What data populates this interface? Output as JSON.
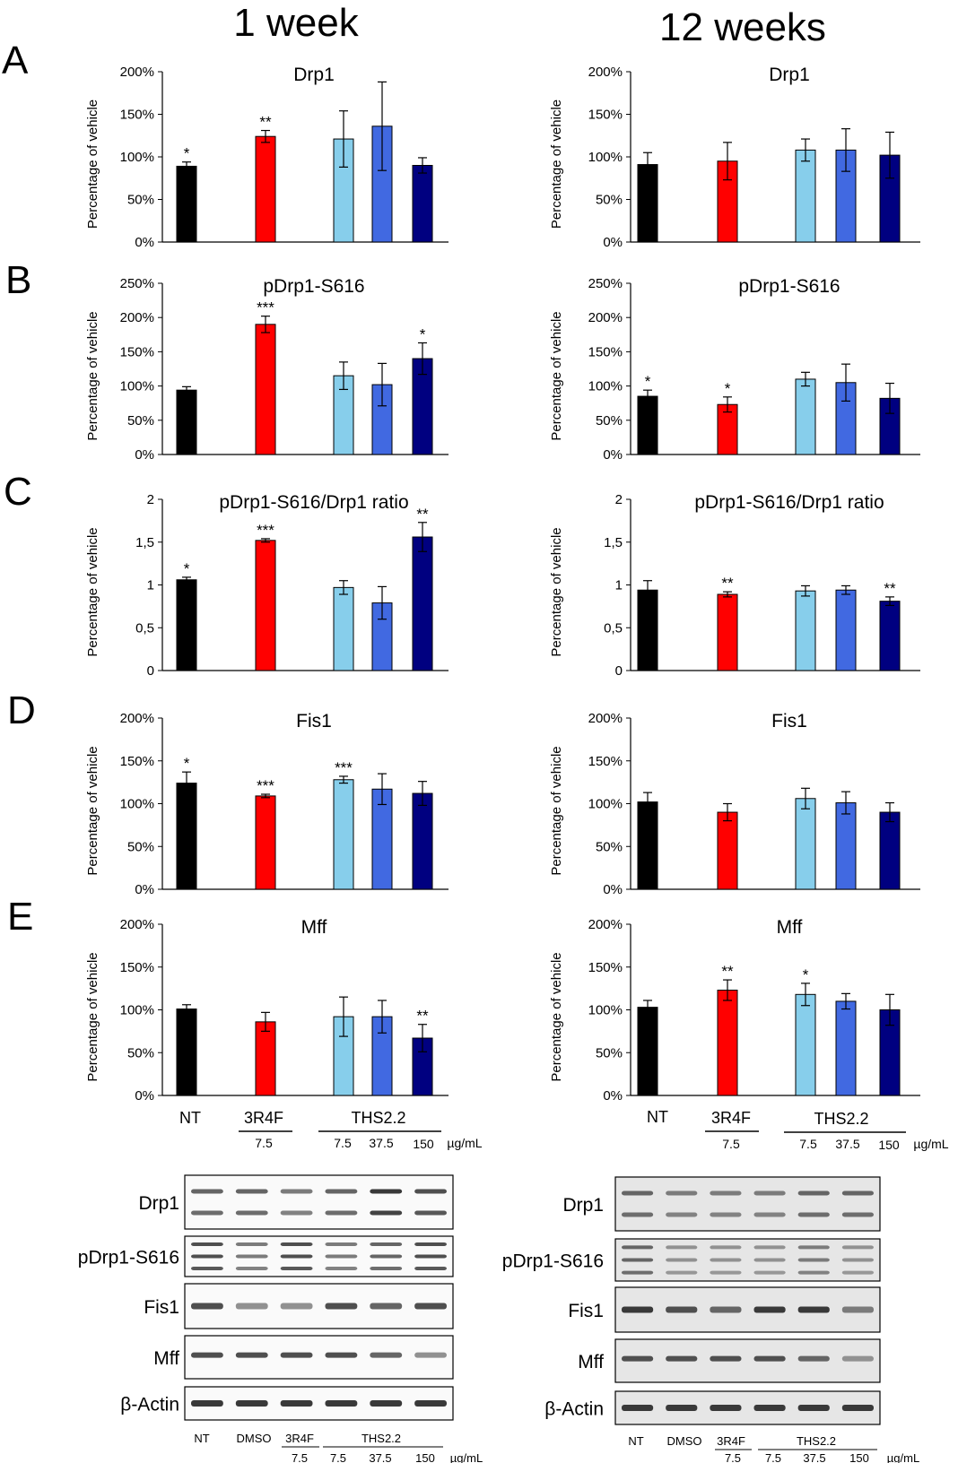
{
  "column_titles": [
    "1 week",
    "12 weeks"
  ],
  "panel_letters": [
    "A",
    "B",
    "C",
    "D",
    "E"
  ],
  "y_axis_label": "Percentage of vehicle",
  "colors": {
    "NT": "#000000",
    "3R4F": "#ff0000",
    "THS2.2_7.5": "#87ceeb",
    "THS2.2_37.5": "#4169e1",
    "THS2.2_150": "#000080"
  },
  "x_axis": {
    "nt": "NT",
    "ref": "3R4F",
    "ref_dose": "7.5",
    "ths": "THS2.2",
    "ths_doses": [
      "7.5",
      "37.5",
      "150"
    ],
    "unit": "µg/mL"
  },
  "chart_data": [
    {
      "type": "bar",
      "panel": "A",
      "timepoint": "1 week",
      "title": "Drp1",
      "yticks": [
        "0%",
        "50%",
        "100%",
        "150%",
        "200%"
      ],
      "ylim": [
        0,
        200
      ],
      "categories": [
        "NT",
        "3R4F 7.5",
        "THS2.2 7.5",
        "THS2.2 37.5",
        "THS2.2 150"
      ],
      "values": [
        89,
        124,
        121,
        136,
        90
      ],
      "errors": [
        5,
        7,
        33,
        52,
        9
      ],
      "significance": [
        "*",
        "**",
        "",
        "",
        ""
      ]
    },
    {
      "type": "bar",
      "panel": "A",
      "timepoint": "12 weeks",
      "title": "Drp1",
      "yticks": [
        "0%",
        "50%",
        "100%",
        "150%",
        "200%"
      ],
      "ylim": [
        0,
        200
      ],
      "categories": [
        "NT",
        "3R4F 7.5",
        "THS2.2 7.5",
        "THS2.2 37.5",
        "THS2.2 150"
      ],
      "values": [
        91,
        95,
        108,
        108,
        102
      ],
      "errors": [
        14,
        22,
        13,
        25,
        27
      ],
      "significance": [
        "",
        "",
        "",
        "",
        ""
      ]
    },
    {
      "type": "bar",
      "panel": "B",
      "timepoint": "1 week",
      "title": "pDrp1-S616",
      "yticks": [
        "0%",
        "50%",
        "100%",
        "150%",
        "200%",
        "250%"
      ],
      "ylim": [
        0,
        250
      ],
      "categories": [
        "NT",
        "3R4F 7.5",
        "THS2.2 7.5",
        "THS2.2 37.5",
        "THS2.2 150"
      ],
      "values": [
        94,
        190,
        115,
        102,
        140
      ],
      "errors": [
        5,
        12,
        20,
        31,
        23
      ],
      "significance": [
        "",
        "***",
        "",
        "",
        "*"
      ]
    },
    {
      "type": "bar",
      "panel": "B",
      "timepoint": "12 weeks",
      "title": "pDrp1-S616",
      "yticks": [
        "0%",
        "50%",
        "100%",
        "150%",
        "200%",
        "250%"
      ],
      "ylim": [
        0,
        250
      ],
      "categories": [
        "NT",
        "3R4F 7.5",
        "THS2.2 7.5",
        "THS2.2 37.5",
        "THS2.2 150"
      ],
      "values": [
        85,
        73,
        110,
        105,
        82
      ],
      "errors": [
        9,
        11,
        10,
        27,
        22
      ],
      "significance": [
        "*",
        "*",
        "",
        "",
        ""
      ]
    },
    {
      "type": "bar",
      "panel": "C",
      "timepoint": "1 week",
      "title": "pDrp1-S616/Drp1 ratio",
      "yticks": [
        "0",
        "0,5",
        "1",
        "1,5",
        "2"
      ],
      "ylim": [
        0,
        2
      ],
      "categories": [
        "NT",
        "3R4F 7.5",
        "THS2.2 7.5",
        "THS2.2 37.5",
        "THS2.2 150"
      ],
      "values": [
        1.06,
        1.52,
        0.97,
        0.79,
        1.56
      ],
      "errors": [
        0.03,
        0.02,
        0.08,
        0.19,
        0.17
      ],
      "significance": [
        "*",
        "***",
        "",
        "",
        "**"
      ]
    },
    {
      "type": "bar",
      "panel": "C",
      "timepoint": "12 weeks",
      "title": "pDrp1-S616/Drp1 ratio",
      "yticks": [
        "0",
        "0,5",
        "1",
        "1,5",
        "2"
      ],
      "ylim": [
        0,
        2
      ],
      "categories": [
        "NT",
        "3R4F 7.5",
        "THS2.2 7.5",
        "THS2.2 37.5",
        "THS2.2 150"
      ],
      "values": [
        0.94,
        0.89,
        0.93,
        0.94,
        0.81
      ],
      "errors": [
        0.11,
        0.03,
        0.06,
        0.05,
        0.05
      ],
      "significance": [
        "",
        "**",
        "",
        "",
        "**"
      ]
    },
    {
      "type": "bar",
      "panel": "D",
      "timepoint": "1 week",
      "title": "Fis1",
      "yticks": [
        "0%",
        "50%",
        "100%",
        "150%",
        "200%"
      ],
      "ylim": [
        0,
        200
      ],
      "categories": [
        "NT",
        "3R4F 7.5",
        "THS2.2 7.5",
        "THS2.2 37.5",
        "THS2.2 150"
      ],
      "values": [
        124,
        109,
        128,
        117,
        112
      ],
      "errors": [
        13,
        2,
        4,
        18,
        14
      ],
      "significance": [
        "*",
        "***",
        "***",
        "",
        ""
      ]
    },
    {
      "type": "bar",
      "panel": "D",
      "timepoint": "12 weeks",
      "title": "Fis1",
      "yticks": [
        "0%",
        "50%",
        "100%",
        "150%",
        "200%"
      ],
      "ylim": [
        0,
        200
      ],
      "categories": [
        "NT",
        "3R4F 7.5",
        "THS2.2 7.5",
        "THS2.2 37.5",
        "THS2.2 150"
      ],
      "values": [
        102,
        90,
        106,
        101,
        90
      ],
      "errors": [
        11,
        10,
        12,
        13,
        11
      ],
      "significance": [
        "",
        "",
        "",
        "",
        ""
      ]
    },
    {
      "type": "bar",
      "panel": "E",
      "timepoint": "1 week",
      "title": "Mff",
      "yticks": [
        "0%",
        "50%",
        "100%",
        "150%",
        "200%"
      ],
      "ylim": [
        0,
        200
      ],
      "categories": [
        "NT",
        "3R4F 7.5",
        "THS2.2 7.5",
        "THS2.2 37.5",
        "THS2.2 150"
      ],
      "values": [
        101,
        86,
        92,
        92,
        67
      ],
      "errors": [
        5,
        11,
        23,
        19,
        16
      ],
      "significance": [
        "",
        "",
        "",
        "",
        "**"
      ]
    },
    {
      "type": "bar",
      "panel": "E",
      "timepoint": "12 weeks",
      "title": "Mff",
      "yticks": [
        "0%",
        "50%",
        "100%",
        "150%",
        "200%"
      ],
      "ylim": [
        0,
        200
      ],
      "categories": [
        "NT",
        "3R4F 7.5",
        "THS2.2 7.5",
        "THS2.2 37.5",
        "THS2.2 150"
      ],
      "values": [
        103,
        123,
        118,
        110,
        100
      ],
      "errors": [
        8,
        12,
        13,
        9,
        18
      ],
      "significance": [
        "",
        "**",
        "*",
        "",
        ""
      ]
    }
  ],
  "blots": {
    "labels": [
      "Drp1",
      "pDrp1-S616",
      "Fis1",
      "Mff",
      "β-Actin"
    ],
    "lanes": [
      "NT",
      "DMSO",
      "3R4F",
      "THS2.2"
    ],
    "ref_dose": "7.5",
    "ths_doses": [
      "7.5",
      "37.5",
      "150"
    ],
    "unit": "µg/mL"
  }
}
